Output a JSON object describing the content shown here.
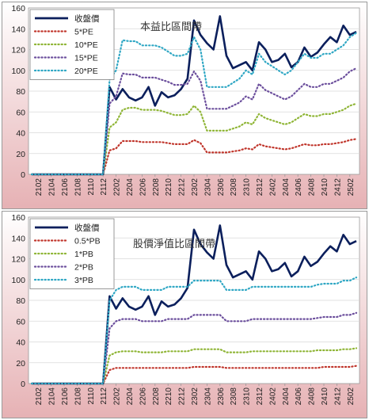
{
  "chart_data": [
    {
      "type": "line",
      "title": "本益比區間帶",
      "legend_position": "top-left",
      "grid": "horizontal",
      "ylim": [
        0,
        160
      ],
      "yticks": [
        0,
        20,
        40,
        60,
        80,
        100,
        120,
        140,
        160
      ],
      "x_tick_labels": [
        "2102",
        "2104",
        "2106",
        "2108",
        "2110",
        "2112",
        "2202",
        "2204",
        "2206",
        "2208",
        "2210",
        "2212",
        "2302",
        "2304",
        "2306",
        "2308",
        "2310",
        "2312",
        "2402",
        "2404",
        "2406",
        "2408",
        "2410",
        "2412",
        "2502"
      ],
      "x": [
        "2101",
        "2102",
        "2103",
        "2104",
        "2105",
        "2106",
        "2107",
        "2108",
        "2109",
        "2110",
        "2111",
        "2112",
        "2201",
        "2202",
        "2203",
        "2204",
        "2205",
        "2206",
        "2207",
        "2208",
        "2209",
        "2210",
        "2211",
        "2212",
        "2301",
        "2302",
        "2303",
        "2304",
        "2305",
        "2306",
        "2307",
        "2308",
        "2309",
        "2310",
        "2311",
        "2312",
        "2401",
        "2402",
        "2403",
        "2404",
        "2405",
        "2406",
        "2407",
        "2408",
        "2409",
        "2410",
        "2411",
        "2412",
        "2501",
        "2502",
        "2503"
      ],
      "series": [
        {
          "name": "收盤價",
          "style": "solid",
          "color": "#0b1f5c",
          "values": [
            0,
            0,
            0,
            0,
            0,
            0,
            0,
            0,
            0,
            0,
            0,
            0,
            84,
            72,
            82,
            74,
            71,
            74,
            84,
            66,
            79,
            74,
            76,
            82,
            92,
            148,
            134,
            126,
            120,
            152,
            114,
            102,
            105,
            108,
            100,
            127,
            120,
            108,
            110,
            116,
            103,
            108,
            122,
            113,
            117,
            125,
            132,
            127,
            143,
            134,
            137
          ]
        },
        {
          "name": "5*PE",
          "style": "dotted",
          "color": "#c0352b",
          "values": [
            0,
            0,
            0,
            0,
            0,
            0,
            0,
            0,
            0,
            0,
            0,
            0,
            23,
            25,
            32,
            32,
            32,
            31,
            31,
            31,
            31,
            30,
            29,
            29,
            29,
            33,
            30,
            21,
            21,
            21,
            21,
            22,
            23,
            25,
            24,
            29,
            27,
            26,
            25,
            24,
            25,
            27,
            29,
            28,
            28,
            29,
            29,
            30,
            31,
            33,
            34
          ]
        },
        {
          "name": "10*PE",
          "style": "dotted",
          "color": "#8fb536",
          "values": [
            0,
            0,
            0,
            0,
            0,
            0,
            0,
            0,
            0,
            0,
            0,
            0,
            45,
            50,
            62,
            64,
            64,
            62,
            62,
            62,
            61,
            59,
            57,
            57,
            58,
            66,
            60,
            42,
            42,
            42,
            42,
            44,
            46,
            50,
            48,
            58,
            54,
            52,
            50,
            48,
            50,
            54,
            58,
            56,
            56,
            58,
            58,
            60,
            62,
            66,
            68
          ]
        },
        {
          "name": "15*PE",
          "style": "dotted",
          "color": "#6b4e9c",
          "values": [
            0,
            0,
            0,
            0,
            0,
            0,
            0,
            0,
            0,
            0,
            0,
            0,
            68,
            75,
            97,
            96,
            96,
            93,
            93,
            93,
            91,
            89,
            86,
            86,
            87,
            99,
            90,
            63,
            63,
            63,
            63,
            66,
            69,
            75,
            72,
            87,
            81,
            78,
            75,
            72,
            75,
            81,
            87,
            84,
            84,
            87,
            87,
            90,
            93,
            99,
            102
          ]
        },
        {
          "name": "20*PE",
          "style": "dotted",
          "color": "#2fa7c4",
          "values": [
            0,
            0,
            0,
            0,
            0,
            0,
            0,
            0,
            0,
            0,
            0,
            0,
            91,
            100,
            129,
            128,
            128,
            124,
            124,
            124,
            122,
            118,
            114,
            114,
            116,
            132,
            120,
            84,
            84,
            84,
            84,
            88,
            92,
            100,
            96,
            116,
            108,
            104,
            100,
            96,
            100,
            108,
            116,
            112,
            112,
            116,
            116,
            120,
            124,
            132,
            136
          ]
        }
      ]
    },
    {
      "type": "line",
      "title": "股價淨值比區間帶",
      "legend_position": "top-left",
      "grid": "horizontal",
      "ylim": [
        0,
        160
      ],
      "yticks": [
        0,
        20,
        40,
        60,
        80,
        100,
        120,
        140,
        160
      ],
      "x_tick_labels": [
        "2102",
        "2104",
        "2106",
        "2108",
        "2110",
        "2112",
        "2202",
        "2204",
        "2206",
        "2208",
        "2210",
        "2212",
        "2302",
        "2304",
        "2306",
        "2308",
        "2310",
        "2312",
        "2402",
        "2404",
        "2406",
        "2408",
        "2410",
        "2412",
        "2502"
      ],
      "x": [
        "2101",
        "2102",
        "2103",
        "2104",
        "2105",
        "2106",
        "2107",
        "2108",
        "2109",
        "2110",
        "2111",
        "2112",
        "2201",
        "2202",
        "2203",
        "2204",
        "2205",
        "2206",
        "2207",
        "2208",
        "2209",
        "2210",
        "2211",
        "2212",
        "2301",
        "2302",
        "2303",
        "2304",
        "2305",
        "2306",
        "2307",
        "2308",
        "2309",
        "2310",
        "2311",
        "2312",
        "2401",
        "2402",
        "2403",
        "2404",
        "2405",
        "2406",
        "2407",
        "2408",
        "2409",
        "2410",
        "2411",
        "2412",
        "2501",
        "2502",
        "2503"
      ],
      "series": [
        {
          "name": "收盤價",
          "style": "solid",
          "color": "#0b1f5c",
          "values": [
            0,
            0,
            0,
            0,
            0,
            0,
            0,
            0,
            0,
            0,
            0,
            0,
            84,
            72,
            82,
            74,
            71,
            74,
            84,
            66,
            79,
            74,
            76,
            82,
            92,
            148,
            134,
            126,
            120,
            152,
            114,
            102,
            105,
            108,
            100,
            127,
            120,
            108,
            110,
            116,
            103,
            108,
            122,
            113,
            117,
            125,
            132,
            127,
            143,
            134,
            137
          ]
        },
        {
          "name": "0.5*PB",
          "style": "dotted",
          "color": "#c0352b",
          "values": [
            0,
            0,
            0,
            0,
            0,
            0,
            0,
            0,
            0,
            0,
            0,
            0,
            13,
            15,
            15,
            15,
            15,
            15,
            15,
            15,
            15,
            15,
            15,
            15,
            15,
            16,
            16,
            16,
            16,
            16,
            15,
            15,
            15,
            15,
            15,
            15,
            15,
            15,
            15,
            15,
            15,
            15,
            15,
            15,
            15,
            16,
            16,
            16,
            16,
            16,
            17
          ]
        },
        {
          "name": "1*PB",
          "style": "dotted",
          "color": "#8fb536",
          "values": [
            0,
            0,
            0,
            0,
            0,
            0,
            0,
            0,
            0,
            0,
            0,
            0,
            27,
            30,
            31,
            31,
            31,
            30,
            30,
            30,
            30,
            31,
            31,
            31,
            31,
            33,
            33,
            33,
            33,
            33,
            30,
            30,
            30,
            30,
            31,
            31,
            31,
            31,
            31,
            31,
            31,
            31,
            31,
            31,
            32,
            32,
            32,
            32,
            33,
            33,
            34
          ]
        },
        {
          "name": "2*PB",
          "style": "dotted",
          "color": "#6b4e9c",
          "values": [
            0,
            0,
            0,
            0,
            0,
            0,
            0,
            0,
            0,
            0,
            0,
            0,
            53,
            60,
            62,
            62,
            62,
            60,
            60,
            60,
            60,
            62,
            62,
            62,
            62,
            66,
            66,
            66,
            66,
            66,
            60,
            60,
            60,
            60,
            62,
            62,
            62,
            62,
            62,
            62,
            62,
            62,
            62,
            62,
            63,
            64,
            64,
            64,
            66,
            66,
            68
          ]
        },
        {
          "name": "3*PB",
          "style": "dotted",
          "color": "#2fa7c4",
          "values": [
            0,
            0,
            0,
            0,
            0,
            0,
            0,
            0,
            0,
            0,
            0,
            0,
            80,
            90,
            93,
            93,
            93,
            90,
            90,
            90,
            90,
            93,
            93,
            93,
            93,
            99,
            99,
            99,
            99,
            99,
            90,
            90,
            90,
            90,
            93,
            93,
            93,
            93,
            93,
            93,
            93,
            93,
            93,
            93,
            95,
            96,
            96,
            96,
            99,
            99,
            102
          ]
        }
      ]
    }
  ]
}
